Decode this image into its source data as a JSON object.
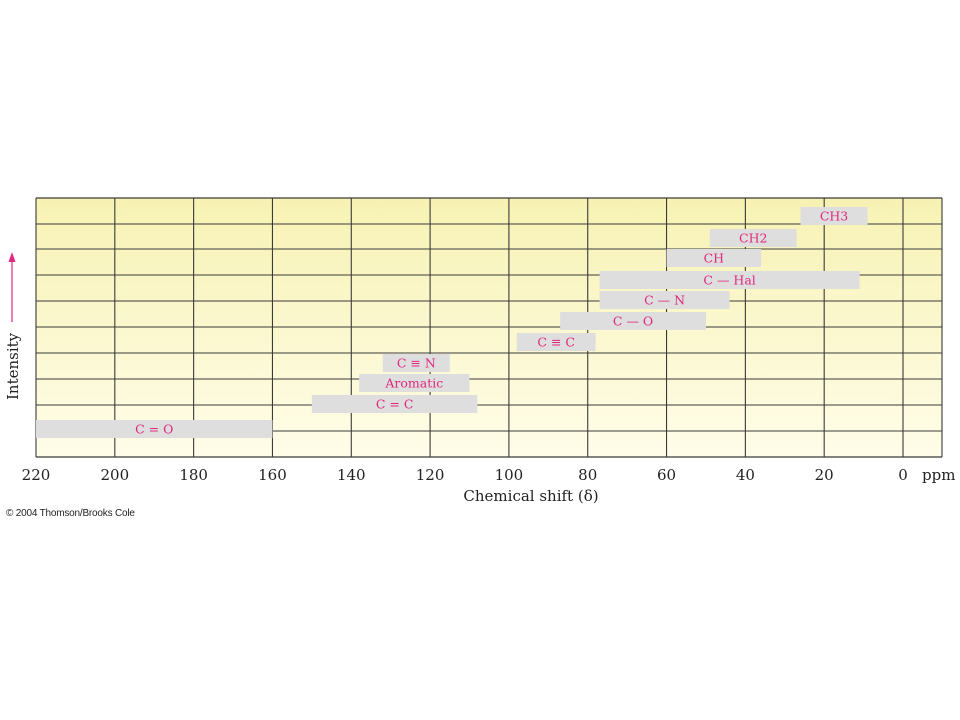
{
  "chart_data": {
    "type": "bar",
    "orientation": "horizontal-range",
    "xlabel": "Chemical shift (δ)",
    "x_unit": "ppm",
    "ylabel": "Intensity",
    "xlim": [
      220,
      0
    ],
    "x_reversed": true,
    "x_ticks": [
      220,
      200,
      180,
      160,
      140,
      120,
      100,
      80,
      60,
      40,
      20,
      0
    ],
    "grid": true,
    "legend": "none",
    "colors": {
      "plot_top": "#f7f2b3",
      "plot_bottom": "#fffde9",
      "bar": "#dedede",
      "label": "#e0287e",
      "grid": "#3a3a3a",
      "axis_arrow": "#e0287e"
    },
    "ranges": [
      {
        "row": 1,
        "label": "CH3",
        "from": 26,
        "to": 9
      },
      {
        "row": 2,
        "label": "CH2",
        "from": 49,
        "to": 27
      },
      {
        "row": 3,
        "label": "CH",
        "from": 60,
        "to": 36
      },
      {
        "row": 4,
        "label": "C — Hal",
        "from": 77,
        "to": 11
      },
      {
        "row": 5,
        "label": "C — N",
        "from": 77,
        "to": 44
      },
      {
        "row": 6,
        "label": "C — O",
        "from": 87,
        "to": 50
      },
      {
        "row": 7,
        "label": "C ≡ C",
        "from": 98,
        "to": 78
      },
      {
        "row": 8,
        "label": "C ≡ N",
        "from": 132,
        "to": 115
      },
      {
        "row": 9,
        "label": "Aromatic",
        "from": 138,
        "to": 110
      },
      {
        "row": 10,
        "label": "C = C",
        "from": 150,
        "to": 108
      },
      {
        "row": 11,
        "label": "C = O",
        "from": 220,
        "to": 160
      }
    ]
  },
  "footer": {
    "copyright": "© 2004 Thomson/Brooks Cole"
  }
}
